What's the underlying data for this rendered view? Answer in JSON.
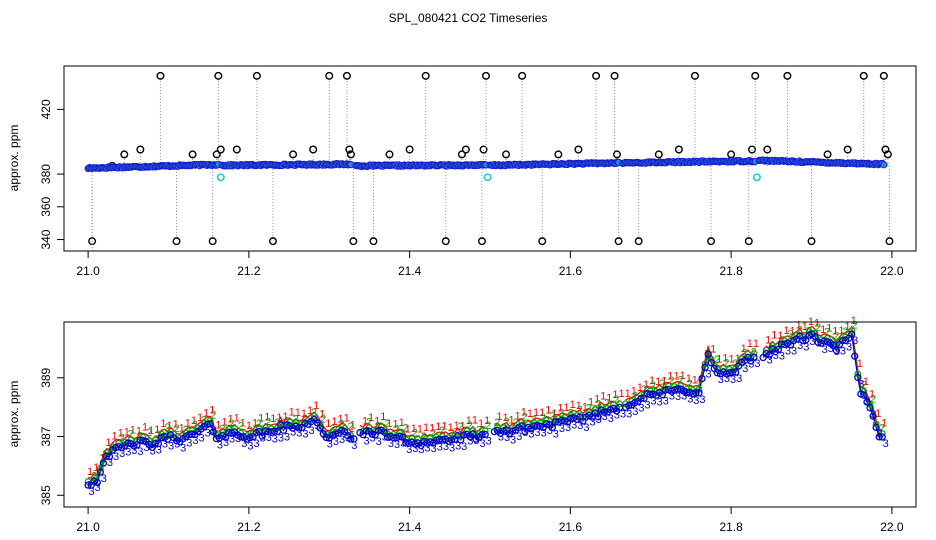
{
  "title": "SPL_080421  CO2 Timeseries",
  "colors": {
    "frame": "#000000",
    "ch1": "#ff0000",
    "ch2": "#00aa00",
    "ch3": "#0000cc",
    "dot_fill": "#1f8fd8",
    "dot_edge": "#1a1acc",
    "cyan": "#22cccc",
    "outlier": "#000000",
    "dotted": "#888888"
  },
  "chart_data": [
    {
      "type": "scatter",
      "name": "raw-timeseries",
      "ylabel": "approx. ppm",
      "xlabel": "",
      "xlim": [
        20.97,
        22.03
      ],
      "ylim": [
        333,
        446
      ],
      "xticks": [
        21.0,
        21.2,
        21.4,
        21.6,
        21.8,
        22.0
      ],
      "xtick_labels": [
        "21.0",
        "21.2",
        "21.4",
        "21.6",
        "21.8",
        "22.0"
      ],
      "yticks": [
        340,
        360,
        380,
        420
      ],
      "ytick_labels": [
        "340",
        "360",
        "380",
        "420"
      ],
      "segments": [
        {
          "start": 21.0,
          "end": 21.162,
          "y0": 383.6,
          "y1": 385.8
        },
        {
          "start": 21.167,
          "end": 21.327,
          "y0": 385.3,
          "y1": 386.0
        },
        {
          "start": 21.333,
          "end": 21.495,
          "y0": 385.0,
          "y1": 385.5
        },
        {
          "start": 21.5,
          "end": 21.66,
          "y0": 385.3,
          "y1": 386.8
        },
        {
          "start": 21.665,
          "end": 21.83,
          "y0": 386.8,
          "y1": 388.0
        },
        {
          "start": 21.835,
          "end": 21.99,
          "y0": 388.3,
          "y1": 386.0
        }
      ],
      "outliers": [
        [
          21.005,
          339
        ],
        [
          21.03,
          385
        ],
        [
          21.045,
          392
        ],
        [
          21.065,
          395
        ],
        [
          21.09,
          440
        ],
        [
          21.11,
          339
        ],
        [
          21.13,
          392
        ],
        [
          21.155,
          339
        ],
        [
          21.16,
          392
        ],
        [
          21.162,
          440
        ],
        [
          21.165,
          395
        ],
        [
          21.185,
          395
        ],
        [
          21.21,
          440
        ],
        [
          21.23,
          339
        ],
        [
          21.255,
          392
        ],
        [
          21.28,
          395
        ],
        [
          21.3,
          440
        ],
        [
          21.322,
          440
        ],
        [
          21.325,
          395
        ],
        [
          21.327,
          392
        ],
        [
          21.33,
          339
        ],
        [
          21.355,
          339
        ],
        [
          21.375,
          392
        ],
        [
          21.4,
          395
        ],
        [
          21.42,
          440
        ],
        [
          21.445,
          339
        ],
        [
          21.465,
          392
        ],
        [
          21.47,
          395
        ],
        [
          21.49,
          339
        ],
        [
          21.492,
          395
        ],
        [
          21.495,
          440
        ],
        [
          21.52,
          392
        ],
        [
          21.54,
          440
        ],
        [
          21.565,
          339
        ],
        [
          21.585,
          392
        ],
        [
          21.61,
          395
        ],
        [
          21.632,
          440
        ],
        [
          21.655,
          440
        ],
        [
          21.658,
          392
        ],
        [
          21.66,
          339
        ],
        [
          21.685,
          339
        ],
        [
          21.71,
          392
        ],
        [
          21.735,
          395
        ],
        [
          21.755,
          440
        ],
        [
          21.775,
          339
        ],
        [
          21.8,
          392
        ],
        [
          21.822,
          339
        ],
        [
          21.826,
          395
        ],
        [
          21.83,
          440
        ],
        [
          21.845,
          395
        ],
        [
          21.87,
          440
        ],
        [
          21.9,
          339
        ],
        [
          21.92,
          392
        ],
        [
          21.945,
          395
        ],
        [
          21.965,
          440
        ],
        [
          21.99,
          440
        ],
        [
          21.992,
          395
        ],
        [
          21.995,
          392
        ],
        [
          21.997,
          339
        ]
      ],
      "cyan_points": [
        [
          21.165,
          378
        ],
        [
          21.497,
          378
        ],
        [
          21.832,
          378
        ]
      ]
    },
    {
      "type": "line",
      "name": "averaged-channels",
      "ylabel": "approx. ppm",
      "xlabel": "",
      "xlim": [
        20.97,
        22.03
      ],
      "ylim": [
        384.6,
        390.9
      ],
      "xticks": [
        21.0,
        21.2,
        21.4,
        21.6,
        21.8,
        22.0
      ],
      "xtick_labels": [
        "21.0",
        "21.2",
        "21.4",
        "21.6",
        "21.8",
        "22.0"
      ],
      "yticks": [
        385,
        387,
        389
      ],
      "ytick_labels": [
        "385",
        "387",
        "389"
      ],
      "series": [
        {
          "name": "1",
          "offset": 0.25
        },
        {
          "name": "2",
          "offset": 0.12
        },
        {
          "name": "3",
          "offset": 0.0
        }
      ],
      "x": [
        21.0,
        21.012,
        21.02,
        21.04,
        21.06,
        21.08,
        21.1,
        21.12,
        21.14,
        21.15,
        21.16,
        21.18,
        21.2,
        21.22,
        21.24,
        21.26,
        21.28,
        21.3,
        21.32,
        21.33,
        21.35,
        21.38,
        21.4,
        21.42,
        21.45,
        21.48,
        21.5,
        21.55,
        21.6,
        21.65,
        21.7,
        21.74,
        21.76,
        21.772,
        21.78,
        21.8,
        21.82,
        21.84,
        21.86,
        21.88,
        21.9,
        21.93,
        21.95,
        21.96,
        21.97,
        21.98,
        21.985
      ],
      "values": [
        385.4,
        385.5,
        386.3,
        386.6,
        386.8,
        386.7,
        387.0,
        386.9,
        387.2,
        387.4,
        387.0,
        387.1,
        387.0,
        387.1,
        387.3,
        387.3,
        387.6,
        386.9,
        387.2,
        386.9,
        387.2,
        387.0,
        386.8,
        386.8,
        386.9,
        387.0,
        387.1,
        387.3,
        387.5,
        387.9,
        388.4,
        388.6,
        388.5,
        389.8,
        389.2,
        389.1,
        389.6,
        389.8,
        390.0,
        390.3,
        390.4,
        390.0,
        390.4,
        388.5,
        388.2,
        387.4,
        387.0
      ]
    }
  ]
}
